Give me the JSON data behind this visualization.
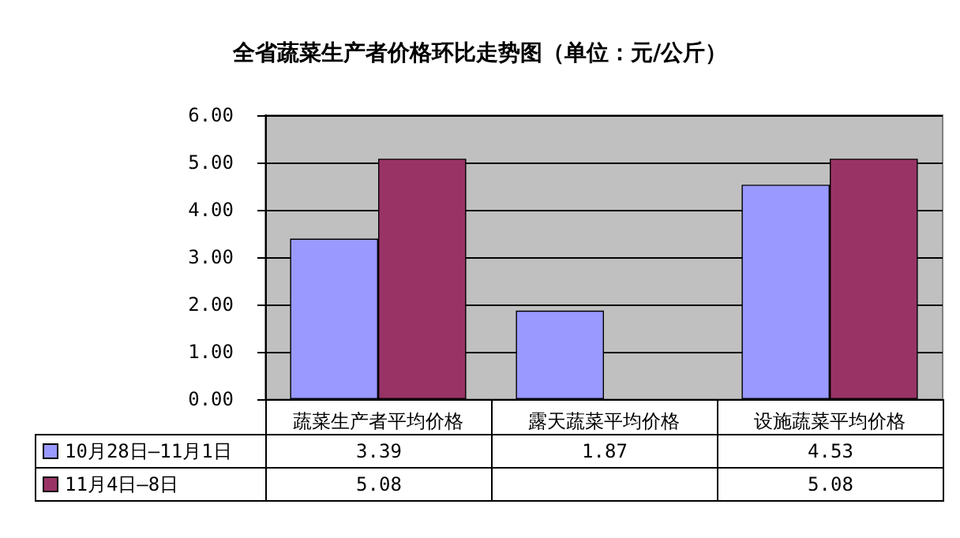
{
  "chart_data": {
    "type": "bar",
    "title": "全省蔬菜生产者价格环比走势图（单位：元/公斤）",
    "categories": [
      "蔬菜生产者平均价格",
      "露天蔬菜平均价格",
      "设施蔬菜平均价格"
    ],
    "series": [
      {
        "name": "10月28日—11月1日",
        "color": "#9999ff",
        "values": [
          3.39,
          1.87,
          4.53
        ]
      },
      {
        "name": "11月4日—8日",
        "color": "#993366",
        "values": [
          5.08,
          null,
          5.08
        ]
      }
    ],
    "ylim": [
      0,
      6
    ],
    "yticks": [
      {
        "value": 0,
        "label": "0.00"
      },
      {
        "value": 1,
        "label": "1.00"
      },
      {
        "value": 2,
        "label": "2.00"
      },
      {
        "value": 3,
        "label": "3.00"
      },
      {
        "value": 4,
        "label": "4.00"
      },
      {
        "value": 5,
        "label": "5.00"
      },
      {
        "value": 6,
        "label": "6.00"
      }
    ],
    "grid": "y",
    "legend": "bottom left",
    "data_labels": true
  }
}
